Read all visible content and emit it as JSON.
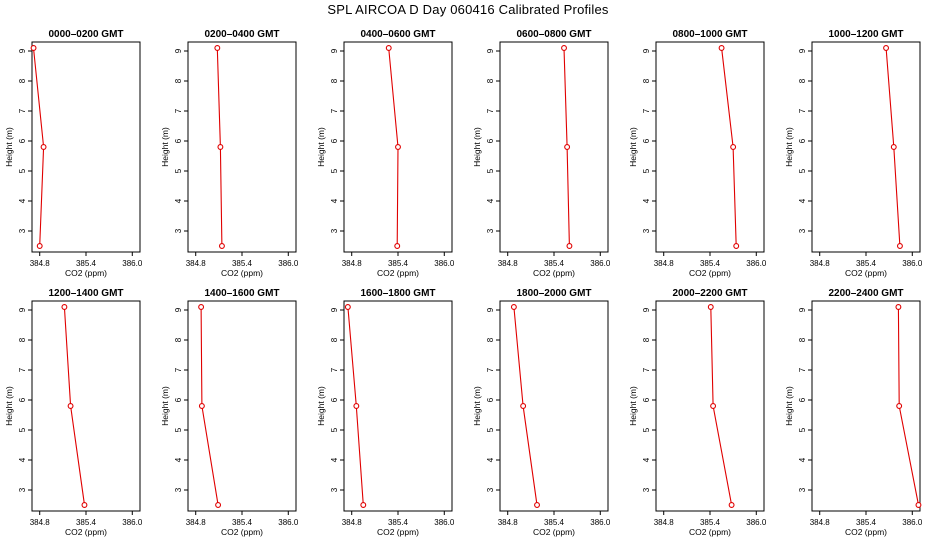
{
  "title": "SPL AIRCOA D  Day 060416  Calibrated Profiles",
  "chart_data": [
    {
      "type": "line",
      "title": "0000–0200 GMT",
      "xlabel": "CO2 (ppm)",
      "ylabel": "Height (m)",
      "xlim": [
        384.7,
        386.1
      ],
      "ylim": [
        2.3,
        9.3
      ],
      "xticks": [
        384.8,
        385.4,
        386.0
      ],
      "xtick_labels": [
        "384.8",
        "385.4",
        "386.0"
      ],
      "yticks": [
        3,
        4,
        5,
        6,
        7,
        8,
        9
      ],
      "color": "#e00000",
      "points": [
        {
          "x": 384.72,
          "y": 9.1
        },
        {
          "x": 384.85,
          "y": 5.8
        },
        {
          "x": 384.8,
          "y": 2.5
        }
      ]
    },
    {
      "type": "line",
      "title": "0200–0400 GMT",
      "xlabel": "CO2 (ppm)",
      "ylabel": "Height (m)",
      "xlim": [
        384.7,
        386.1
      ],
      "ylim": [
        2.3,
        9.3
      ],
      "xticks": [
        384.8,
        385.4,
        386.0
      ],
      "xtick_labels": [
        "384.8",
        "385.4",
        "386.0"
      ],
      "yticks": [
        3,
        4,
        5,
        6,
        7,
        8,
        9
      ],
      "color": "#e00000",
      "points": [
        {
          "x": 385.08,
          "y": 9.1
        },
        {
          "x": 385.12,
          "y": 5.8
        },
        {
          "x": 385.14,
          "y": 2.5
        }
      ]
    },
    {
      "type": "line",
      "title": "0400–0600 GMT",
      "xlabel": "CO2 (ppm)",
      "ylabel": "Height (m)",
      "xlim": [
        384.7,
        386.1
      ],
      "ylim": [
        2.3,
        9.3
      ],
      "xticks": [
        384.8,
        385.4,
        386.0
      ],
      "xtick_labels": [
        "384.8",
        "385.4",
        "386.0"
      ],
      "yticks": [
        3,
        4,
        5,
        6,
        7,
        8,
        9
      ],
      "color": "#e00000",
      "points": [
        {
          "x": 385.28,
          "y": 9.1
        },
        {
          "x": 385.4,
          "y": 5.8
        },
        {
          "x": 385.39,
          "y": 2.5
        }
      ]
    },
    {
      "type": "line",
      "title": "0600–0800 GMT",
      "xlabel": "CO2 (ppm)",
      "ylabel": "Height (m)",
      "xlim": [
        384.7,
        386.1
      ],
      "ylim": [
        2.3,
        9.3
      ],
      "xticks": [
        384.8,
        385.4,
        386.0
      ],
      "xtick_labels": [
        "384.8",
        "385.4",
        "386.0"
      ],
      "yticks": [
        3,
        4,
        5,
        6,
        7,
        8,
        9
      ],
      "color": "#e00000",
      "points": [
        {
          "x": 385.53,
          "y": 9.1
        },
        {
          "x": 385.57,
          "y": 5.8
        },
        {
          "x": 385.6,
          "y": 2.5
        }
      ]
    },
    {
      "type": "line",
      "title": "0800–1000 GMT",
      "xlabel": "CO2 (ppm)",
      "ylabel": "Height (m)",
      "xlim": [
        384.7,
        386.1
      ],
      "ylim": [
        2.3,
        9.3
      ],
      "xticks": [
        384.8,
        385.4,
        386.0
      ],
      "xtick_labels": [
        "384.8",
        "385.4",
        "386.0"
      ],
      "yticks": [
        3,
        4,
        5,
        6,
        7,
        8,
        9
      ],
      "color": "#e00000",
      "points": [
        {
          "x": 385.55,
          "y": 9.1
        },
        {
          "x": 385.7,
          "y": 5.8
        },
        {
          "x": 385.74,
          "y": 2.5
        }
      ]
    },
    {
      "type": "line",
      "title": "1000–1200 GMT",
      "xlabel": "CO2 (ppm)",
      "ylabel": "Height (m)",
      "xlim": [
        384.7,
        386.1
      ],
      "ylim": [
        2.3,
        9.3
      ],
      "xticks": [
        384.8,
        385.4,
        386.0
      ],
      "xtick_labels": [
        "384.8",
        "385.4",
        "386.0"
      ],
      "yticks": [
        3,
        4,
        5,
        6,
        7,
        8,
        9
      ],
      "color": "#e00000",
      "points": [
        {
          "x": 385.66,
          "y": 9.1
        },
        {
          "x": 385.76,
          "y": 5.8
        },
        {
          "x": 385.84,
          "y": 2.5
        }
      ]
    },
    {
      "type": "line",
      "title": "1200–1400 GMT",
      "xlabel": "CO2 (ppm)",
      "ylabel": "Height (m)",
      "xlim": [
        384.7,
        386.1
      ],
      "ylim": [
        2.3,
        9.3
      ],
      "xticks": [
        384.8,
        385.4,
        386.0
      ],
      "xtick_labels": [
        "384.8",
        "385.4",
        "386.0"
      ],
      "yticks": [
        3,
        4,
        5,
        6,
        7,
        8,
        9
      ],
      "color": "#e00000",
      "points": [
        {
          "x": 385.12,
          "y": 9.1
        },
        {
          "x": 385.2,
          "y": 5.8
        },
        {
          "x": 385.38,
          "y": 2.5
        }
      ]
    },
    {
      "type": "line",
      "title": "1400–1600 GMT",
      "xlabel": "CO2 (ppm)",
      "ylabel": "Height (m)",
      "xlim": [
        384.7,
        386.1
      ],
      "ylim": [
        2.3,
        9.3
      ],
      "xticks": [
        384.8,
        385.4,
        386.0
      ],
      "xtick_labels": [
        "384.8",
        "385.4",
        "386.0"
      ],
      "yticks": [
        3,
        4,
        5,
        6,
        7,
        8,
        9
      ],
      "color": "#e00000",
      "points": [
        {
          "x": 384.87,
          "y": 9.1
        },
        {
          "x": 384.88,
          "y": 5.8
        },
        {
          "x": 385.09,
          "y": 2.5
        }
      ]
    },
    {
      "type": "line",
      "title": "1600–1800 GMT",
      "xlabel": "CO2 (ppm)",
      "ylabel": "Height (m)",
      "xlim": [
        384.7,
        386.1
      ],
      "ylim": [
        2.3,
        9.3
      ],
      "xticks": [
        384.8,
        385.4,
        386.0
      ],
      "xtick_labels": [
        "384.8",
        "385.4",
        "386.0"
      ],
      "yticks": [
        3,
        4,
        5,
        6,
        7,
        8,
        9
      ],
      "color": "#e00000",
      "points": [
        {
          "x": 384.75,
          "y": 9.1
        },
        {
          "x": 384.86,
          "y": 5.8
        },
        {
          "x": 384.95,
          "y": 2.5
        }
      ]
    },
    {
      "type": "line",
      "title": "1800–2000 GMT",
      "xlabel": "CO2 (ppm)",
      "ylabel": "Height (m)",
      "xlim": [
        384.7,
        386.1
      ],
      "ylim": [
        2.3,
        9.3
      ],
      "xticks": [
        384.8,
        385.4,
        386.0
      ],
      "xtick_labels": [
        "384.8",
        "385.4",
        "386.0"
      ],
      "yticks": [
        3,
        4,
        5,
        6,
        7,
        8,
        9
      ],
      "color": "#e00000",
      "points": [
        {
          "x": 384.88,
          "y": 9.1
        },
        {
          "x": 385.0,
          "y": 5.8
        },
        {
          "x": 385.18,
          "y": 2.5
        }
      ]
    },
    {
      "type": "line",
      "title": "2000–2200 GMT",
      "xlabel": "CO2 (ppm)",
      "ylabel": "Height (m)",
      "xlim": [
        384.7,
        386.1
      ],
      "ylim": [
        2.3,
        9.3
      ],
      "xticks": [
        384.8,
        385.4,
        386.0
      ],
      "xtick_labels": [
        "384.8",
        "385.4",
        "386.0"
      ],
      "yticks": [
        3,
        4,
        5,
        6,
        7,
        8,
        9
      ],
      "color": "#e00000",
      "points": [
        {
          "x": 385.41,
          "y": 9.1
        },
        {
          "x": 385.44,
          "y": 5.8
        },
        {
          "x": 385.68,
          "y": 2.5
        }
      ]
    },
    {
      "type": "line",
      "title": "2200–2400 GMT",
      "xlabel": "CO2 (ppm)",
      "ylabel": "Height (m)",
      "xlim": [
        384.7,
        386.1
      ],
      "ylim": [
        2.3,
        9.3
      ],
      "xticks": [
        384.8,
        385.4,
        386.0
      ],
      "xtick_labels": [
        "384.8",
        "385.4",
        "386.0"
      ],
      "yticks": [
        3,
        4,
        5,
        6,
        7,
        8,
        9
      ],
      "color": "#e00000",
      "points": [
        {
          "x": 385.82,
          "y": 9.1
        },
        {
          "x": 385.83,
          "y": 5.8
        },
        {
          "x": 386.08,
          "y": 2.5
        }
      ]
    }
  ]
}
